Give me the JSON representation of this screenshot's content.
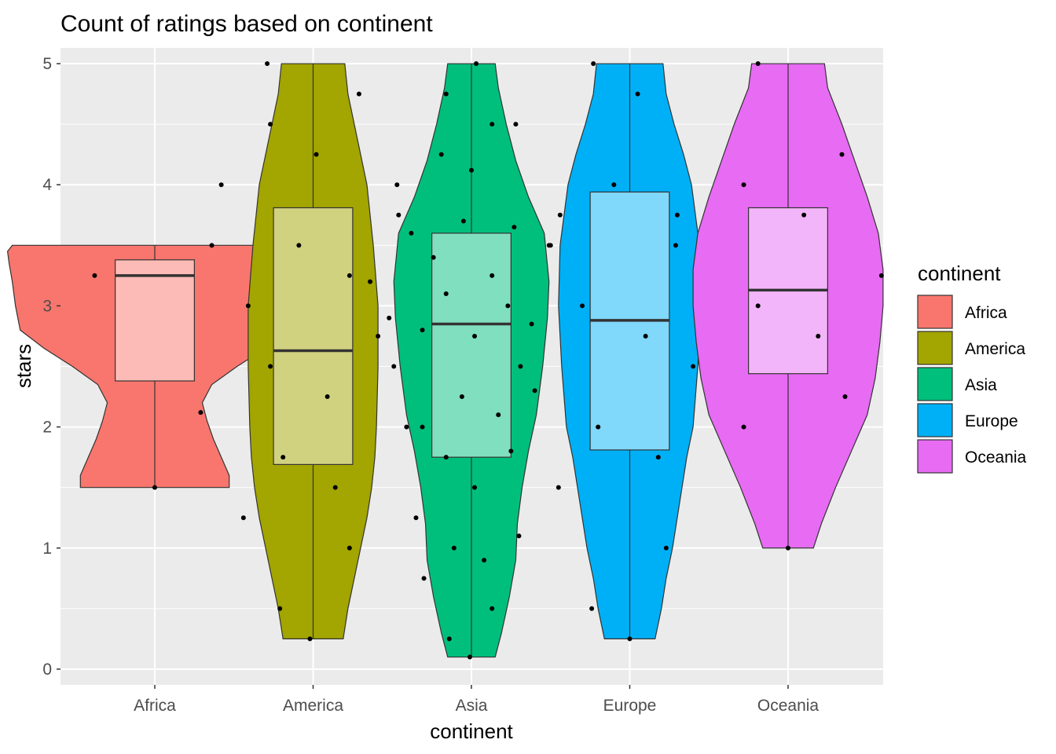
{
  "chart_data": {
    "type": "violin",
    "title": "Count of ratings based on continent",
    "xlabel": "continent",
    "ylabel": "stars",
    "ylim": [
      -0.13,
      5.13
    ],
    "y_ticks": [
      0,
      1,
      2,
      3,
      4,
      5
    ],
    "categories": [
      "Africa",
      "America",
      "Asia",
      "Europe",
      "Oceania"
    ],
    "grid": true,
    "legend": {
      "title": "continent",
      "position": "right"
    },
    "series": [
      {
        "name": "Africa",
        "color": "#F8766D",
        "box": {
          "q1": 2.38,
          "median": 3.25,
          "q3": 3.38,
          "whisker_low": 1.5,
          "whisker_high": 3.5
        },
        "violin": [
          [
            1.5,
            0.47
          ],
          [
            1.6,
            0.47
          ],
          [
            1.75,
            0.42
          ],
          [
            1.9,
            0.37
          ],
          [
            2.05,
            0.33
          ],
          [
            2.2,
            0.3
          ],
          [
            2.35,
            0.36
          ],
          [
            2.5,
            0.52
          ],
          [
            2.65,
            0.7
          ],
          [
            2.8,
            0.85
          ],
          [
            3.0,
            0.88
          ],
          [
            3.2,
            0.9
          ],
          [
            3.35,
            0.92
          ],
          [
            3.45,
            0.93
          ],
          [
            3.5,
            0.9
          ]
        ],
        "points": [
          [
            1.5,
            0.0
          ],
          [
            3.25,
            -0.38
          ],
          [
            3.5,
            0.36
          ]
        ]
      },
      {
        "name": "America",
        "color": "#A3A500",
        "box": {
          "q1": 1.69,
          "median": 2.63,
          "q3": 3.81,
          "whisker_low": 0.25,
          "whisker_high": 5.0
        },
        "violin": [
          [
            0.25,
            0.19
          ],
          [
            0.5,
            0.22
          ],
          [
            0.75,
            0.26
          ],
          [
            1.0,
            0.3
          ],
          [
            1.25,
            0.34
          ],
          [
            1.5,
            0.37
          ],
          [
            1.75,
            0.39
          ],
          [
            2.0,
            0.4
          ],
          [
            2.5,
            0.41
          ],
          [
            3.0,
            0.41
          ],
          [
            3.5,
            0.38
          ],
          [
            4.0,
            0.34
          ],
          [
            4.25,
            0.3
          ],
          [
            4.5,
            0.26
          ],
          [
            4.75,
            0.22
          ],
          [
            5.0,
            0.2
          ]
        ],
        "points": [
          [
            5.0,
            -0.29
          ],
          [
            4.75,
            0.29
          ],
          [
            4.5,
            -0.27
          ],
          [
            4.25,
            0.02
          ],
          [
            4.0,
            -0.58
          ],
          [
            3.75,
            0.54
          ],
          [
            3.5,
            -0.09
          ],
          [
            3.25,
            0.23
          ],
          [
            3.0,
            -0.41
          ],
          [
            2.75,
            0.41
          ],
          [
            2.5,
            -0.27
          ],
          [
            2.25,
            0.09
          ],
          [
            2.12,
            -0.71
          ],
          [
            2.0,
            0.59
          ],
          [
            1.75,
            -0.19
          ],
          [
            1.5,
            0.14
          ],
          [
            1.25,
            -0.44
          ],
          [
            1.0,
            0.23
          ],
          [
            0.5,
            -0.21
          ],
          [
            0.25,
            -0.02
          ]
        ]
      },
      {
        "name": "Asia",
        "color": "#00BF7D",
        "box": {
          "q1": 1.75,
          "median": 2.85,
          "q3": 3.6,
          "whisker_low": 0.1,
          "whisker_high": 5.0
        },
        "violin": [
          [
            0.1,
            0.15
          ],
          [
            0.3,
            0.19
          ],
          [
            0.6,
            0.24
          ],
          [
            0.9,
            0.28
          ],
          [
            1.2,
            0.29
          ],
          [
            1.5,
            0.32
          ],
          [
            1.8,
            0.36
          ],
          [
            2.1,
            0.41
          ],
          [
            2.5,
            0.45
          ],
          [
            2.9,
            0.48
          ],
          [
            3.2,
            0.49
          ],
          [
            3.6,
            0.46
          ],
          [
            3.9,
            0.36
          ],
          [
            4.2,
            0.28
          ],
          [
            4.5,
            0.22
          ],
          [
            4.8,
            0.17
          ],
          [
            5.0,
            0.15
          ]
        ],
        "points": [
          [
            5.0,
            0.03
          ],
          [
            4.75,
            -0.16
          ],
          [
            4.5,
            0.13
          ],
          [
            4.25,
            -0.19
          ],
          [
            4.12,
            0.0
          ],
          [
            4.0,
            -0.47
          ],
          [
            3.75,
            0.56
          ],
          [
            3.7,
            -0.05
          ],
          [
            3.65,
            0.27
          ],
          [
            3.6,
            -0.38
          ],
          [
            3.5,
            0.49
          ],
          [
            3.4,
            -0.24
          ],
          [
            3.25,
            0.13
          ],
          [
            3.2,
            -0.64
          ],
          [
            3.12,
            0.64
          ],
          [
            3.1,
            -0.16
          ],
          [
            3.0,
            0.23
          ],
          [
            2.9,
            -0.52
          ],
          [
            2.85,
            0.38
          ],
          [
            2.8,
            -0.31
          ],
          [
            2.75,
            0.02
          ],
          [
            2.5,
            -0.49
          ],
          [
            2.3,
            0.4
          ],
          [
            2.25,
            -0.06
          ],
          [
            2.1,
            0.17
          ],
          [
            2.0,
            -0.31
          ],
          [
            1.8,
            0.25
          ],
          [
            1.75,
            -0.16
          ],
          [
            1.5,
            0.02
          ],
          [
            1.25,
            -0.35
          ],
          [
            1.1,
            0.3
          ],
          [
            1.0,
            -0.11
          ],
          [
            0.9,
            0.08
          ],
          [
            0.75,
            -0.3
          ],
          [
            0.5,
            0.13
          ],
          [
            0.25,
            -0.14
          ],
          [
            0.1,
            -0.01
          ]
        ]
      },
      {
        "name": "Europe",
        "color": "#00B0F6",
        "box": {
          "q1": 1.81,
          "median": 2.88,
          "q3": 3.94,
          "whisker_low": 0.25,
          "whisker_high": 5.0
        },
        "violin": [
          [
            0.25,
            0.16
          ],
          [
            0.5,
            0.2
          ],
          [
            0.75,
            0.23
          ],
          [
            1.0,
            0.27
          ],
          [
            1.25,
            0.3
          ],
          [
            1.5,
            0.33
          ],
          [
            1.75,
            0.36
          ],
          [
            2.0,
            0.4
          ],
          [
            2.5,
            0.43
          ],
          [
            3.0,
            0.45
          ],
          [
            3.5,
            0.44
          ],
          [
            4.0,
            0.39
          ],
          [
            4.25,
            0.34
          ],
          [
            4.5,
            0.28
          ],
          [
            4.75,
            0.23
          ],
          [
            5.0,
            0.21
          ]
        ],
        "points": [
          [
            5.0,
            -0.23
          ],
          [
            4.75,
            0.05
          ],
          [
            4.5,
            -0.72
          ],
          [
            4.25,
            0.69
          ],
          [
            4.0,
            -0.1
          ],
          [
            3.75,
            0.3
          ],
          [
            3.5,
            -0.5
          ],
          [
            3.25,
            0.5
          ],
          [
            3.0,
            -0.3
          ],
          [
            2.75,
            0.1
          ],
          [
            2.5,
            -0.69
          ],
          [
            2.25,
            0.59
          ],
          [
            2.0,
            -0.2
          ],
          [
            1.75,
            0.18
          ],
          [
            1.5,
            -0.45
          ],
          [
            1.0,
            0.23
          ],
          [
            0.5,
            -0.24
          ],
          [
            0.25,
            0.0
          ]
        ]
      },
      {
        "name": "Oceania",
        "color": "#E76BF3",
        "box": {
          "q1": 2.44,
          "median": 3.13,
          "q3": 3.81,
          "whisker_low": 1.0,
          "whisker_high": 5.0
        },
        "violin": [
          [
            1.0,
            0.16
          ],
          [
            1.2,
            0.21
          ],
          [
            1.5,
            0.3
          ],
          [
            1.8,
            0.4
          ],
          [
            2.1,
            0.5
          ],
          [
            2.4,
            0.55
          ],
          [
            2.7,
            0.58
          ],
          [
            3.0,
            0.6
          ],
          [
            3.3,
            0.6
          ],
          [
            3.6,
            0.57
          ],
          [
            3.9,
            0.5
          ],
          [
            4.2,
            0.42
          ],
          [
            4.5,
            0.34
          ],
          [
            4.8,
            0.25
          ],
          [
            5.0,
            0.23
          ]
        ],
        "points": [
          [
            5.0,
            -0.19
          ],
          [
            4.25,
            0.34
          ],
          [
            4.0,
            -0.28
          ],
          [
            3.75,
            0.1
          ],
          [
            3.5,
            -0.71
          ],
          [
            3.25,
            0.59
          ],
          [
            3.0,
            -0.19
          ],
          [
            2.75,
            0.19
          ],
          [
            2.5,
            -0.6
          ],
          [
            2.25,
            0.36
          ],
          [
            2.0,
            -0.28
          ],
          [
            1.0,
            0.0
          ]
        ]
      }
    ]
  }
}
